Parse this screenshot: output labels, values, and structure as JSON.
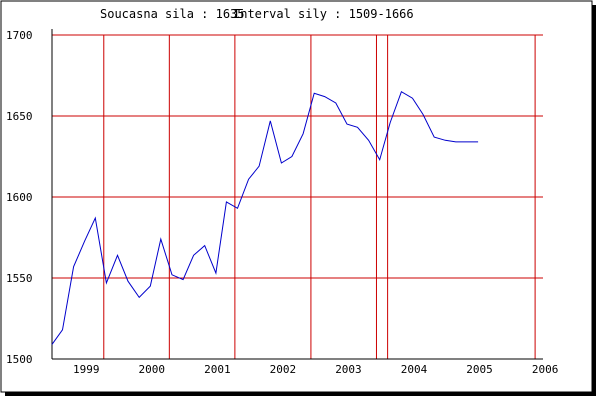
{
  "header": {
    "current_label": "Soucasna sila : 1635",
    "interval_label": "Interval sily : 1509-1666"
  },
  "chart_data": {
    "type": "line",
    "title": "",
    "xlabel": "",
    "ylabel": "",
    "ylim": [
      1500,
      1700
    ],
    "xlim": [
      1998.63,
      2006.09
    ],
    "y_ticks": [
      "1500",
      "1550",
      "1600",
      "1650",
      "1700"
    ],
    "x_ticks": [
      {
        "label": "1999",
        "value": 1999
      },
      {
        "label": "2000",
        "value": 2000
      },
      {
        "label": "2001",
        "value": 2001
      },
      {
        "label": "2002",
        "value": 2002
      },
      {
        "label": "2003",
        "value": 2003
      },
      {
        "label": "2004",
        "value": 2004
      },
      {
        "label": "2005",
        "value": 2005
      },
      {
        "label": "2006",
        "value": 2006
      }
    ],
    "grid_y": [
      1550,
      1600,
      1650,
      1700
    ],
    "grid_x": [
      1999.42,
      2000.42,
      2001.42,
      2002.58,
      2003.58,
      2003.75,
      2006.0
    ],
    "line_color": "#0000cc",
    "grid_color": "#cc0000",
    "series": [
      {
        "x": [
          1998.63,
          1998.79,
          1998.96,
          1999.13,
          1999.29,
          1999.46,
          1999.63,
          1999.79,
          1999.96,
          2000.13,
          2000.29,
          2000.46,
          2000.63,
          2000.79,
          2000.96,
          2001.13,
          2001.29,
          2001.46,
          2001.63,
          2001.79,
          2001.96,
          2002.13,
          2002.29,
          2002.46,
          2002.63,
          2002.79,
          2002.96,
          2003.13,
          2003.29,
          2003.46,
          2003.63,
          2003.79,
          2003.96,
          2004.13,
          2004.29,
          2004.46,
          2004.63,
          2004.79,
          2004.96,
          2005.13
        ],
        "values": [
          1509,
          1518,
          1557,
          1573,
          1587,
          1547,
          1564,
          1548,
          1538,
          1545,
          1574,
          1552,
          1549,
          1564,
          1570,
          1553,
          1597,
          1593,
          1611,
          1619,
          1647,
          1621,
          1625,
          1639,
          1664,
          1662,
          1658,
          1645,
          1643,
          1635,
          1623,
          1646,
          1665,
          1661,
          1651,
          1637,
          1635,
          1634,
          1634,
          1634
        ]
      }
    ]
  }
}
